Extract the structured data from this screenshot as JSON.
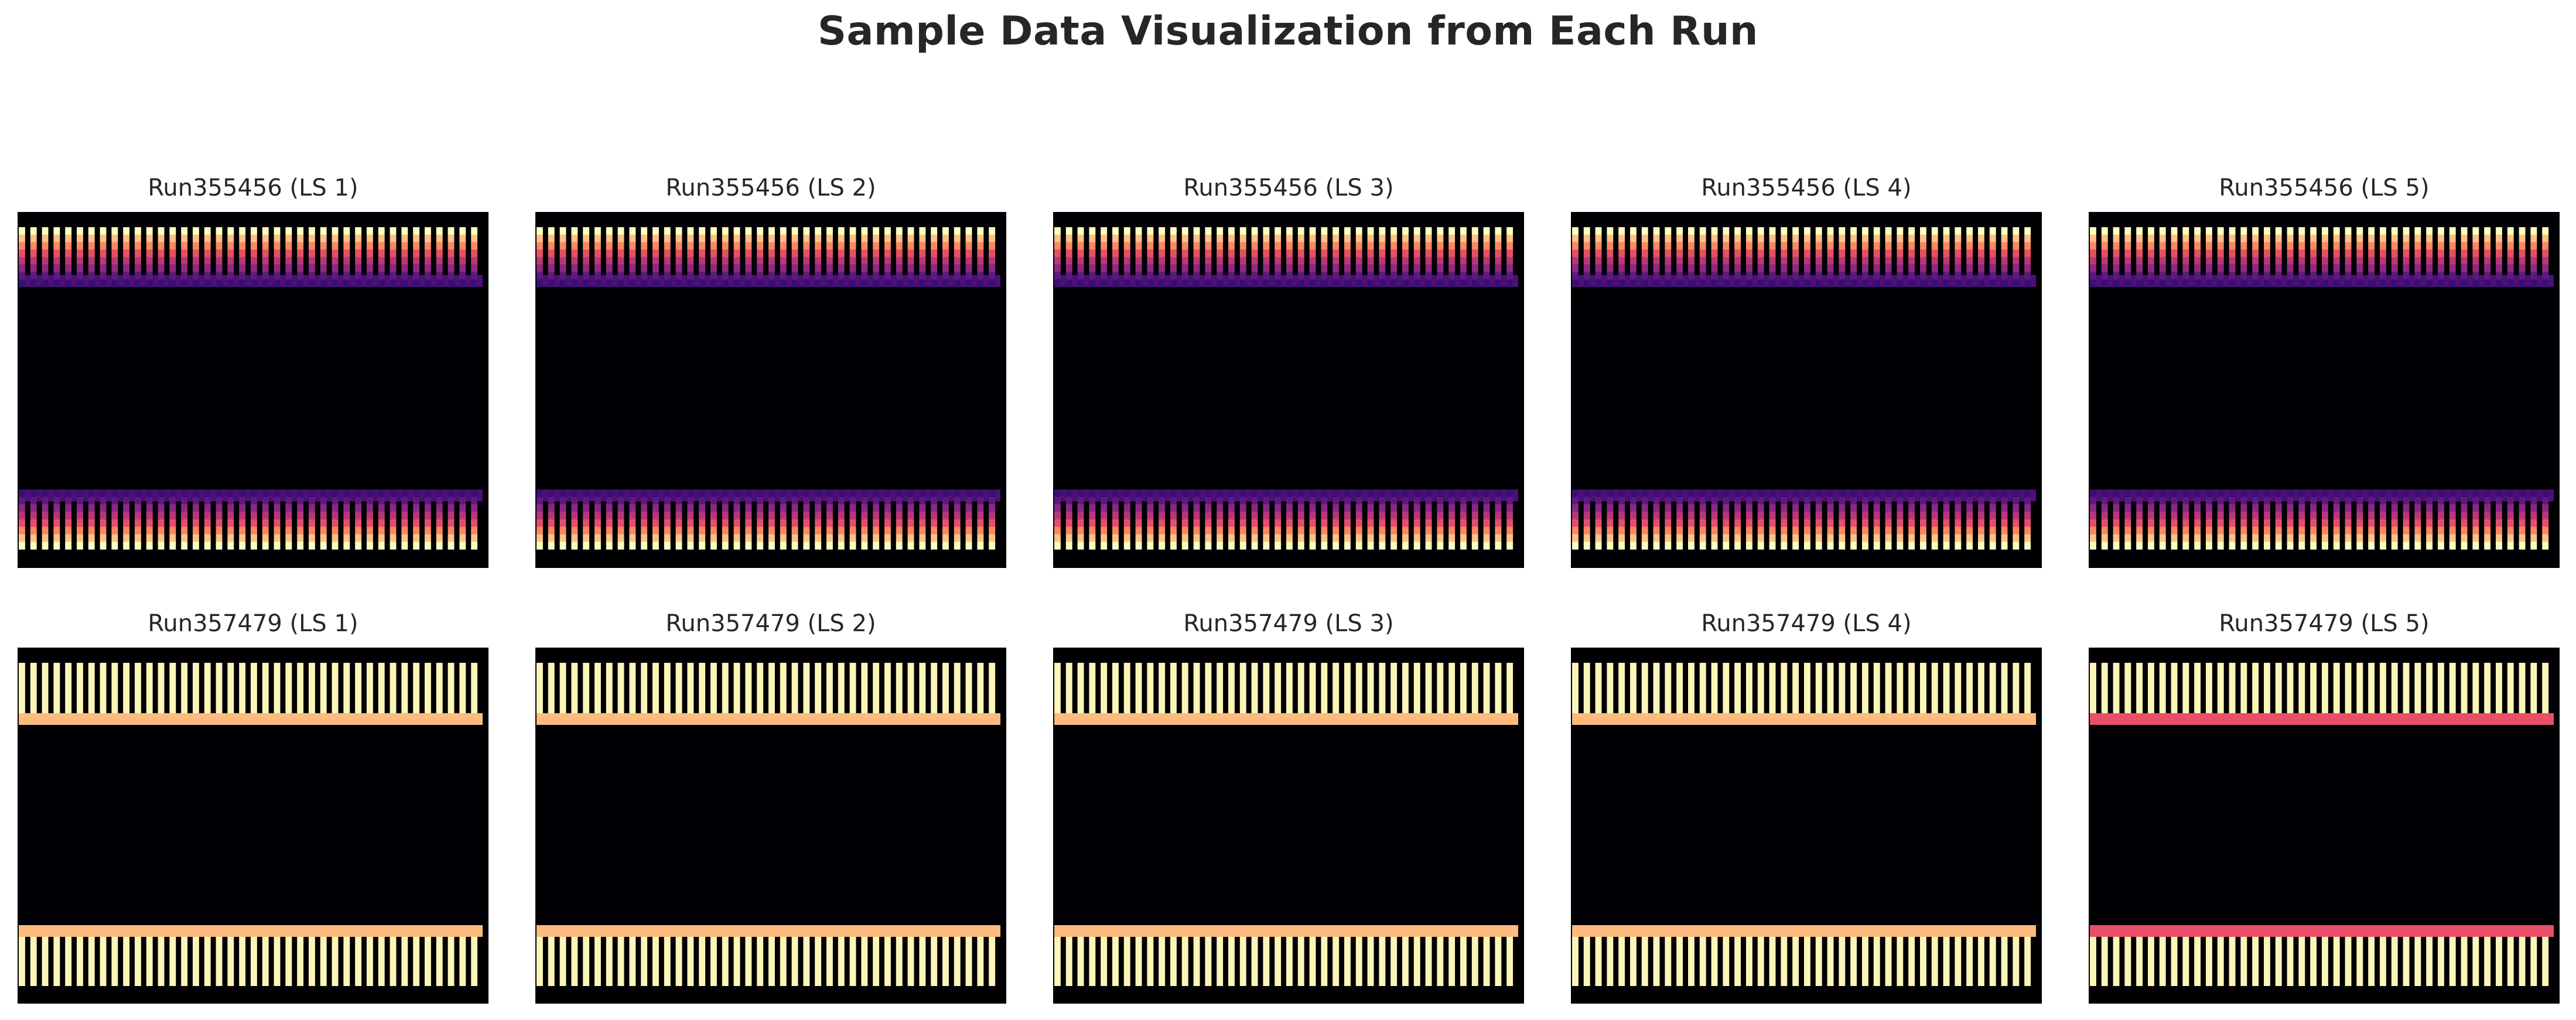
{
  "figure": {
    "title": "Sample Data Visualization from Each Run"
  },
  "chart_data": {
    "type": "heatmap",
    "title": "Sample Data Visualization from Each Run",
    "colormap": "magma",
    "grid": false,
    "axes_visible": false,
    "stripes_per_band": 40,
    "panels": [
      {
        "title": "Run355456 (LS 1)",
        "run": "Run355456",
        "ls": 1,
        "pattern": "gradient"
      },
      {
        "title": "Run355456 (LS 2)",
        "run": "Run355456",
        "ls": 2,
        "pattern": "gradient"
      },
      {
        "title": "Run355456 (LS 3)",
        "run": "Run355456",
        "ls": 3,
        "pattern": "gradient"
      },
      {
        "title": "Run355456 (LS 4)",
        "run": "Run355456",
        "ls": 4,
        "pattern": "gradient"
      },
      {
        "title": "Run355456 (LS 5)",
        "run": "Run355456",
        "ls": 5,
        "pattern": "gradient"
      },
      {
        "title": "Run357479 (LS 1)",
        "run": "Run357479",
        "ls": 1,
        "pattern": "saturated"
      },
      {
        "title": "Run357479 (LS 2)",
        "run": "Run357479",
        "ls": 2,
        "pattern": "saturated"
      },
      {
        "title": "Run357479 (LS 3)",
        "run": "Run357479",
        "ls": 3,
        "pattern": "saturated"
      },
      {
        "title": "Run357479 (LS 4)",
        "run": "Run357479",
        "ls": 4,
        "pattern": "saturated"
      },
      {
        "title": "Run357479 (LS 5)",
        "run": "Run357479",
        "ls": 5,
        "pattern": "saturated_red_edge"
      }
    ],
    "colors": {
      "background": "#000004",
      "gradient_top_to_bottom": [
        "#fcfdbf",
        "#fec287",
        "#fb8861",
        "#e55064",
        "#b73779",
        "#8c2981",
        "#5f187f",
        "#3b0f70"
      ],
      "saturated_stripe": "#fcf5b8",
      "saturated_edge": "#fdbb7f",
      "red_edge": "#e8506a"
    }
  }
}
